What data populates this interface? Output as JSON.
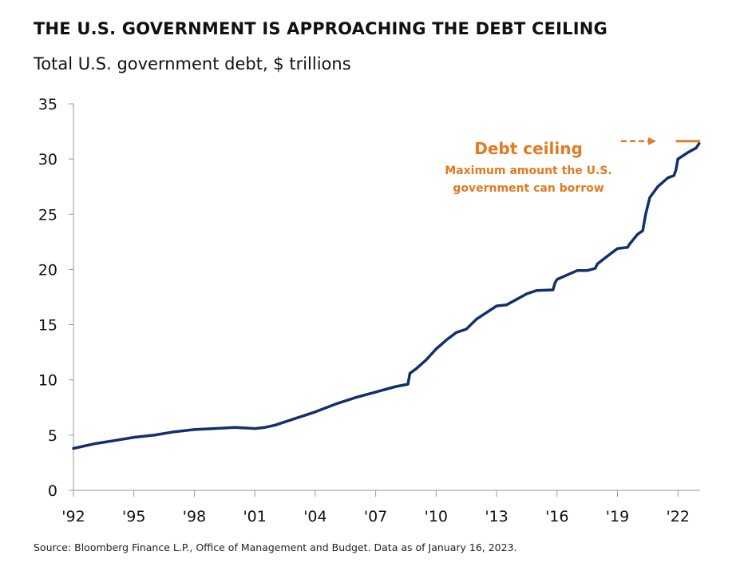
{
  "colors": {
    "series": "#13306b",
    "accent": "#e07b20",
    "axis": "#999999",
    "text": "#111111"
  },
  "chart_data": {
    "type": "line",
    "title": "THE U.S. GOVERNMENT IS APPROACHING THE DEBT CEILING",
    "subtitle": "Total U.S. government debt, $ trillions",
    "source": "Source: Bloomberg Finance L.P., Office of Management and Budget. Data as of January 16, 2023.",
    "xlabel": "",
    "ylabel": "",
    "xlim": [
      1992,
      2023.1
    ],
    "ylim": [
      0,
      35
    ],
    "x_ticks": [
      1992,
      1995,
      1998,
      2001,
      2004,
      2007,
      2010,
      2013,
      2016,
      2019,
      2022
    ],
    "x_tick_labels": [
      "'92",
      "'95",
      "'98",
      "'01",
      "'04",
      "'07",
      "'10",
      "'13",
      "'16",
      "'19",
      "'22"
    ],
    "y_ticks": [
      0,
      5,
      10,
      15,
      20,
      25,
      30,
      35
    ],
    "y_tick_labels": [
      "0",
      "5",
      "10",
      "15",
      "20",
      "25",
      "30",
      "35"
    ],
    "grid": false,
    "series": [
      {
        "name": "",
        "x": [
          1992.0,
          1993.0,
          1994.0,
          1995.0,
          1996.0,
          1997.0,
          1998.0,
          1999.0,
          2000.0,
          2000.5,
          2001.0,
          2001.5,
          2002.0,
          2003.0,
          2004.0,
          2005.0,
          2006.0,
          2007.0,
          2008.0,
          2008.6,
          2008.7,
          2009.0,
          2009.5,
          2010.0,
          2010.5,
          2011.0,
          2011.5,
          2012.0,
          2012.5,
          2013.0,
          2013.5,
          2014.0,
          2014.5,
          2015.0,
          2015.8,
          2015.9,
          2016.0,
          2016.5,
          2017.0,
          2017.5,
          2017.9,
          2018.0,
          2018.5,
          2019.0,
          2019.5,
          2019.6,
          2020.0,
          2020.25,
          2020.4,
          2020.6,
          2021.0,
          2021.5,
          2021.8,
          2021.9,
          2022.0,
          2022.5,
          2022.9,
          2023.05
        ],
        "values": [
          3.8,
          4.2,
          4.5,
          4.8,
          5.0,
          5.3,
          5.5,
          5.6,
          5.7,
          5.65,
          5.6,
          5.7,
          5.9,
          6.5,
          7.1,
          7.8,
          8.4,
          8.9,
          9.4,
          9.6,
          10.6,
          11.0,
          11.8,
          12.8,
          13.6,
          14.3,
          14.6,
          15.5,
          16.1,
          16.7,
          16.8,
          17.3,
          17.8,
          18.1,
          18.15,
          18.8,
          19.1,
          19.5,
          19.9,
          19.9,
          20.1,
          20.5,
          21.2,
          21.9,
          22.0,
          22.3,
          23.2,
          23.5,
          25.0,
          26.5,
          27.5,
          28.3,
          28.5,
          29.0,
          30.0,
          30.6,
          31.0,
          31.4
        ]
      }
    ],
    "annotations": [
      {
        "type": "reference-line",
        "label": "Debt ceiling",
        "sublabel_lines": [
          "Maximum amount the U.S.",
          "government can borrow"
        ],
        "y": 31.4,
        "x_start": 2021.9,
        "x_end": 2023.1
      }
    ]
  }
}
